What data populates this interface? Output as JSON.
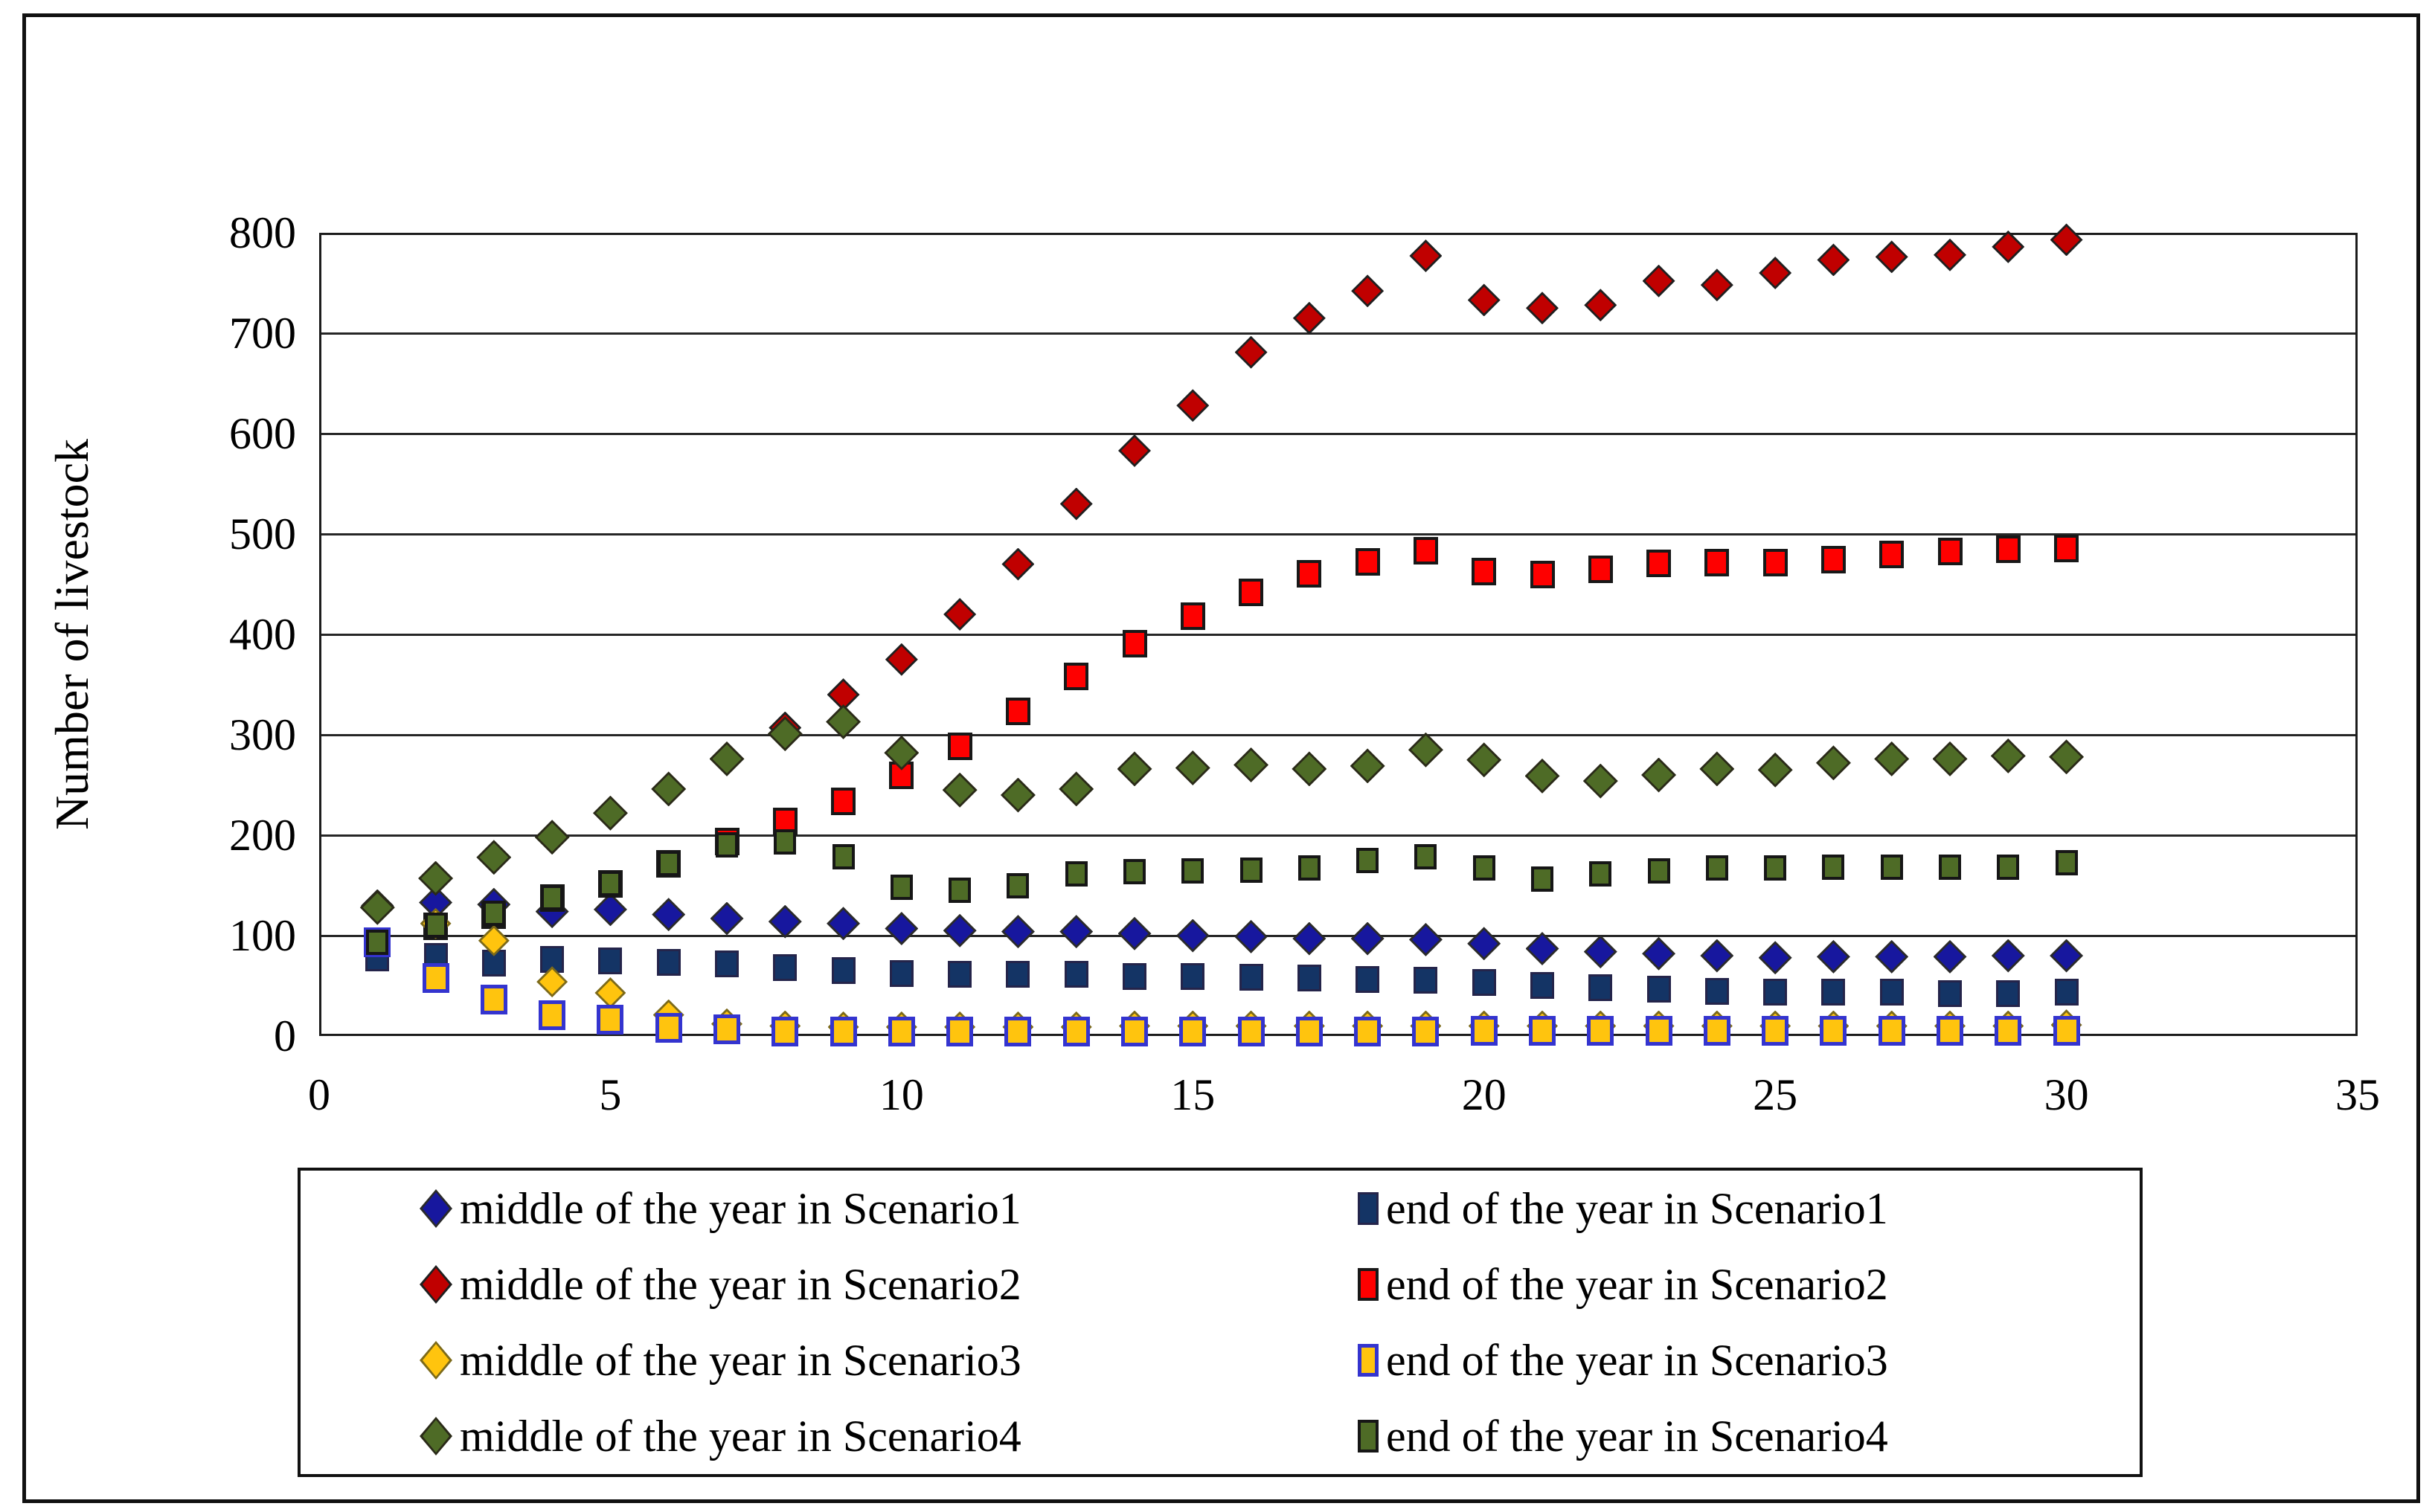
{
  "figure": {
    "y_axis_title": "Number of livestock",
    "background_color": "#ffffff",
    "border_color": "#111111"
  },
  "chart_data": {
    "type": "scatter",
    "title": "",
    "xlabel": "",
    "ylabel": "Number of livestock",
    "xlim": [
      0,
      35
    ],
    "ylim": [
      0,
      800
    ],
    "x_ticks": [
      0,
      5,
      10,
      15,
      20,
      25,
      30,
      35
    ],
    "y_ticks": [
      0,
      100,
      200,
      300,
      400,
      500,
      600,
      700,
      800
    ],
    "grid": "horizontal",
    "legend_position": "bottom",
    "x_years": [
      1,
      2,
      3,
      4,
      5,
      6,
      7,
      8,
      9,
      10,
      11,
      12,
      13,
      14,
      15,
      16,
      17,
      18,
      19,
      20,
      21,
      22,
      23,
      24,
      25,
      26,
      27,
      28,
      29,
      30
    ],
    "series": [
      {
        "id": "mid-scenario1",
        "name": "middle of the year in Scenario1",
        "marker": "diamond",
        "fill": "#17179e",
        "stroke": "#2a2a2a",
        "stroke_width": 4,
        "size": 45,
        "values": [
          129,
          133,
          131,
          124,
          126,
          121,
          117,
          114,
          112,
          107,
          105,
          104,
          104,
          102,
          100,
          99,
          97,
          97,
          96,
          92,
          87,
          84,
          82,
          80,
          78,
          79,
          79,
          79,
          80,
          80
        ]
      },
      {
        "id": "end-scenario1",
        "name": "end of the year in Scenario1",
        "marker": "square",
        "fill": "#143465",
        "stroke": "#24244a",
        "stroke_width": 3,
        "size": 32,
        "values": [
          79,
          81,
          74,
          78,
          76,
          75,
          73,
          70,
          67,
          64,
          63,
          63,
          63,
          61,
          61,
          60,
          59,
          58,
          57,
          55,
          52,
          50,
          48,
          46,
          45,
          45,
          45,
          44,
          44,
          45
        ]
      },
      {
        "id": "mid-scenario2",
        "name": "middle of the year in Scenario2",
        "marker": "diamond",
        "fill": "#c00000",
        "stroke": "#1f1f1f",
        "stroke_width": 4,
        "size": 44,
        "values": [
          130,
          158,
          178,
          199,
          222,
          246,
          276,
          307,
          340,
          375,
          420,
          470,
          530,
          583,
          628,
          681,
          715,
          742,
          777,
          733,
          725,
          728,
          752,
          748,
          760,
          773,
          776,
          778,
          786,
          793
        ]
      },
      {
        "id": "end-scenario2",
        "name": "end of the year in Scenario2",
        "marker": "square",
        "fill": "#fe0000",
        "stroke": "#181818",
        "stroke_width": 4,
        "size": 33,
        "values": [
          95,
          111,
          122,
          139,
          153,
          173,
          195,
          215,
          235,
          261,
          290,
          325,
          360,
          392,
          420,
          443,
          462,
          474,
          485,
          464,
          461,
          466,
          472,
          473,
          473,
          476,
          481,
          484,
          486,
          487
        ]
      },
      {
        "id": "mid-scenario3",
        "name": "middle of the year in Scenario3",
        "marker": "diamond",
        "fill": "#ffc40e",
        "stroke": "#7c6a1a",
        "stroke_width": 4,
        "size": 42,
        "values": [
          129,
          112,
          95,
          54,
          43,
          21,
          12,
          10,
          9,
          9,
          9,
          9,
          9,
          10,
          10,
          10,
          10,
          10,
          10,
          10,
          10,
          10,
          10,
          10,
          10,
          10,
          10,
          10,
          10,
          11
        ]
      },
      {
        "id": "end-scenario3",
        "name": "end of the year in Scenario3",
        "marker": "square",
        "fill": "#ffc40e",
        "stroke": "#3434cf",
        "stroke_width": 5,
        "size": 36,
        "values": [
          95,
          59,
          38,
          22,
          18,
          10,
          8,
          6,
          6,
          6,
          6,
          6,
          6,
          6,
          6,
          6,
          6,
          6,
          6,
          7,
          7,
          7,
          7,
          7,
          7,
          7,
          7,
          7,
          7,
          7
        ]
      },
      {
        "id": "mid-scenario4",
        "name": "middle of the year in Scenario4",
        "marker": "diamond",
        "fill": "#4e6b26",
        "stroke": "#2a2a18",
        "stroke_width": 4,
        "size": 47,
        "values": [
          128,
          157,
          178,
          198,
          222,
          246,
          276,
          301,
          313,
          282,
          245,
          240,
          246,
          266,
          267,
          270,
          266,
          269,
          285,
          275,
          259,
          254,
          260,
          266,
          265,
          272,
          276,
          276,
          279,
          278
        ]
      },
      {
        "id": "end-scenario4",
        "name": "end of the year in Scenario4",
        "marker": "square",
        "fill": "#4e6b26",
        "stroke": "#161616",
        "stroke_width": 4,
        "size": 30,
        "values": [
          95,
          112,
          124,
          139,
          153,
          173,
          192,
          195,
          180,
          150,
          147,
          151,
          163,
          165,
          166,
          167,
          169,
          176,
          180,
          169,
          158,
          163,
          166,
          169,
          169,
          170,
          170,
          170,
          170,
          174
        ]
      }
    ]
  },
  "legend": {
    "items": [
      {
        "series_id": "mid-scenario1",
        "label": "middle of the year in Scenario1"
      },
      {
        "series_id": "end-scenario1",
        "label": "end of the year in Scenario1"
      },
      {
        "series_id": "mid-scenario2",
        "label": "middle of the year in Scenario2"
      },
      {
        "series_id": "end-scenario2",
        "label": "end of the year in Scenario2"
      },
      {
        "series_id": "mid-scenario3",
        "label": "middle of the year in Scenario3"
      },
      {
        "series_id": "end-scenario3",
        "label": "end of the year in Scenario3"
      },
      {
        "series_id": "mid-scenario4",
        "label": "middle of the year in Scenario4"
      },
      {
        "series_id": "end-scenario4",
        "label": "end of the year in Scenario4"
      }
    ]
  }
}
